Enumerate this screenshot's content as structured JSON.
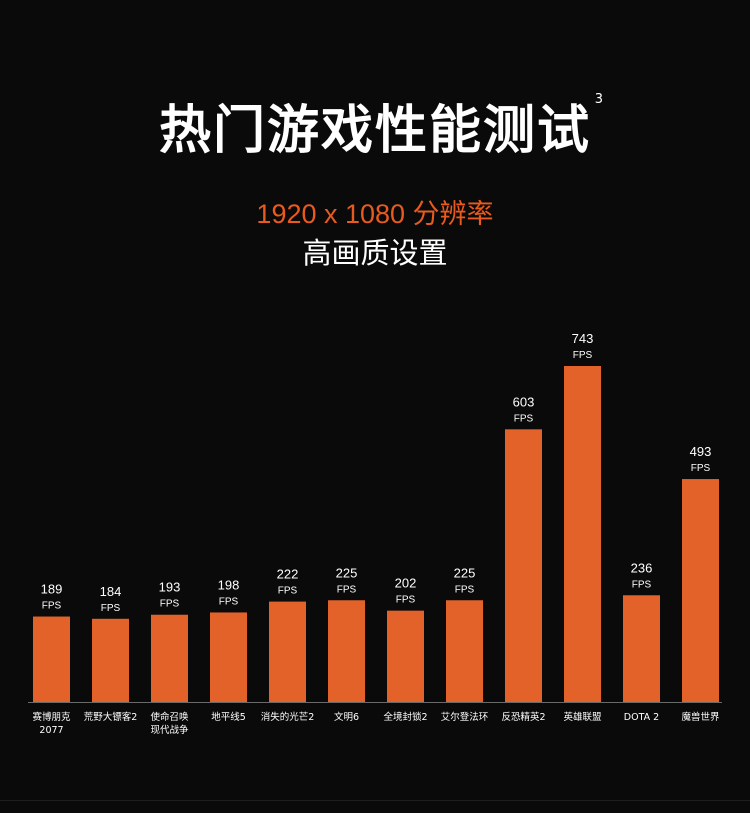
{
  "header": {
    "title": "热门游戏性能测试",
    "footnote": "3",
    "resolution": "1920 x 1080 分辨率",
    "quality": "高画质设置"
  },
  "colors": {
    "bar": "#e2622a",
    "accent": "#e85a1e",
    "background": "#0a0a0a"
  },
  "chart_data": {
    "type": "bar",
    "title": "热门游戏性能测试",
    "subtitle": "1920 x 1080 分辨率 高画质设置",
    "unit": "FPS",
    "categories": [
      [
        "赛博朋克",
        "2077"
      ],
      [
        "荒野大镖客2"
      ],
      [
        "使命召唤",
        "现代战争"
      ],
      [
        "地平线5"
      ],
      [
        "消失的光芒2"
      ],
      [
        "文明6"
      ],
      [
        "全境封锁2"
      ],
      [
        "艾尔登法环"
      ],
      [
        "反恐精英2"
      ],
      [
        "英雄联盟"
      ],
      [
        "DOTA 2"
      ],
      [
        "魔兽世界"
      ]
    ],
    "values": [
      189,
      184,
      193,
      198,
      222,
      225,
      202,
      225,
      603,
      743,
      236,
      493
    ],
    "ylim": [
      0,
      743
    ]
  }
}
